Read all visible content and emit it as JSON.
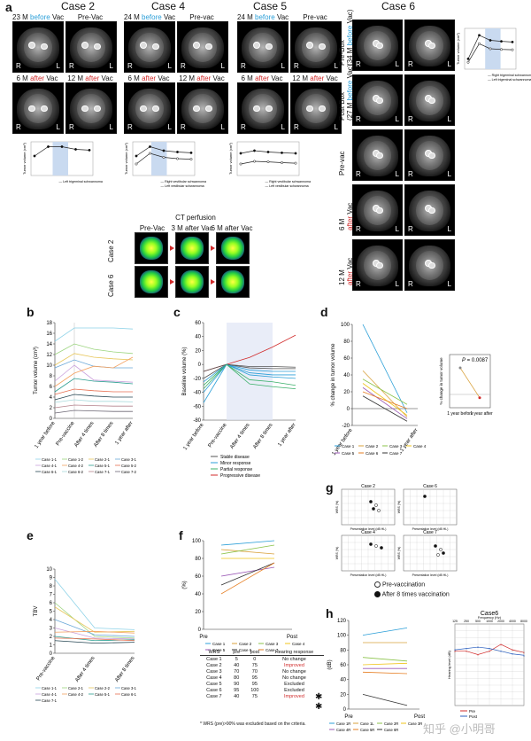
{
  "panel_a": {
    "letter": "a",
    "cases": [
      "Case 2",
      "Case 4",
      "Case 5",
      "Case 6"
    ],
    "case2": {
      "top_left": {
        "pre": "23 M",
        "mid": "before",
        "post": "Vac"
      },
      "top_right": "Pre-Vac",
      "bot_left": {
        "pre": "6 M",
        "mid": "after",
        "post": "Vac"
      },
      "bot_right": {
        "pre": "12 M",
        "mid": "after",
        "post": "Vac"
      }
    },
    "case4": {
      "top_left": {
        "pre": "24 M",
        "mid": "before",
        "post": "Vac"
      },
      "top_right": "Pre-vac",
      "bot_left": {
        "pre": "6 M",
        "mid": "after",
        "post": "Vac"
      },
      "bot_right": {
        "pre": "12 M",
        "mid": "after",
        "post": "Vac"
      }
    },
    "case5": {
      "top_left": {
        "pre": "24 M",
        "mid": "before",
        "post": "Vac"
      },
      "top_right": "Pre-vac",
      "bot_left": {
        "pre": "6 M",
        "mid": "after",
        "post": "Vac"
      },
      "bot_right": {
        "pre": "12 M",
        "mid": "after",
        "post": "Vac"
      }
    },
    "case6_rows": [
      {
        "line1": "Pre-Box",
        "line2a": "(34 M",
        "line2b": "before",
        "line2c": "Vac)"
      },
      {
        "line1": "Post Box",
        "line2a": "(27 M",
        "line2b": "before",
        "line2c": "Vac)"
      },
      {
        "line1": "Pre-vac",
        "line2a": "",
        "line2b": "",
        "line2c": ""
      },
      {
        "line1": "6 M",
        "line2a": "",
        "line2b": "after",
        "line2c": "Vac"
      },
      {
        "line1": "12 M",
        "line2a": "",
        "line2b": "after",
        "line2c": "Vac"
      }
    ],
    "R": "R",
    "L": "L",
    "ct_perfusion": {
      "title": "CT perfusion",
      "cols": [
        "Pre-Vac",
        "3 M after Vac",
        "6 M after Vac"
      ],
      "rows": [
        "Case 2",
        "Case 6"
      ]
    },
    "mini_ylabel": "Tumor volume (cm³)",
    "mini_legends": {
      "case2": [
        "Left trigeminal schwannoma"
      ],
      "case4": [
        "Right vestibular schwannoma",
        "Left vestibular schwannoma"
      ],
      "case5": [
        "Right vestibular schwannoma",
        "Left vestibular schwannoma"
      ],
      "case6": [
        "Right trigeminal schwannoma",
        "Left trigeminal schwannoma"
      ]
    }
  },
  "chart_data": [
    {
      "id": "b",
      "type": "line",
      "title": "",
      "ylabel": "Tumor volume (cm³)",
      "categories": [
        "1 year before",
        "Pre-vaccine",
        "After 4 times",
        "After 8 times",
        "1 year after"
      ],
      "ylim": [
        0,
        18
      ],
      "yticks": [
        0,
        2,
        4,
        6,
        8,
        10,
        12,
        14,
        16,
        18
      ],
      "series": [
        {
          "name": "Case 1-1",
          "values": [
            14.5,
            17,
            17,
            17,
            16.8
          ]
        },
        {
          "name": "Case 1-2",
          "values": [
            12,
            14,
            13,
            12.5,
            12.2
          ]
        },
        {
          "name": "Case 2-1",
          "values": [
            10,
            12.2,
            11.5,
            11.2,
            11
          ]
        },
        {
          "name": "Case 3-1",
          "values": [
            9.5,
            11,
            9.8,
            9.5,
            9.5
          ]
        },
        {
          "name": "Case 4-1",
          "values": [
            7,
            10,
            7.2,
            7,
            6.8
          ]
        },
        {
          "name": "Case 4-2",
          "values": [
            6,
            8.5,
            9.8,
            9.5,
            11.5
          ]
        },
        {
          "name": "Case 5-1",
          "values": [
            5,
            7.5,
            7,
            6.8,
            6.5
          ]
        },
        {
          "name": "Case 5-2",
          "values": [
            4.5,
            5.5,
            5.2,
            5,
            5
          ]
        },
        {
          "name": "Case 6-1",
          "values": [
            3.5,
            4.5,
            4.2,
            4,
            4
          ]
        },
        {
          "name": "Case 6-2",
          "values": [
            3,
            3.5,
            3.2,
            3.2,
            3.1
          ]
        },
        {
          "name": "Case 7-1",
          "values": [
            2,
            2.5,
            2.4,
            2.3,
            2.3
          ]
        },
        {
          "name": "Case 7-2",
          "values": [
            1,
            1.5,
            1.4,
            1.3,
            1.3
          ]
        }
      ]
    },
    {
      "id": "c",
      "type": "line",
      "ylabel": "Baseline volume (%)",
      "categories": [
        "1 year before",
        "Pre-vaccine",
        "After 4 times",
        "After 8 times",
        "1 year after"
      ],
      "ylim": [
        -80,
        60
      ],
      "yticks": [
        -80,
        -60,
        -40,
        -20,
        0,
        20,
        40,
        60
      ],
      "legend": [
        "Stable disease",
        "Minor response",
        "Partial response",
        "Progressive disease"
      ],
      "legend_colors": [
        "#555555",
        "#2b9fd8",
        "#3bb06a",
        "#d12b2b"
      ],
      "series": [
        {
          "name": "s1",
          "color": "#d12b2b",
          "values": [
            -10,
            0,
            10,
            25,
            42
          ]
        },
        {
          "name": "s2",
          "color": "#2b9fd8",
          "values": [
            -55,
            0,
            -12,
            -15,
            -15
          ]
        },
        {
          "name": "s3",
          "color": "#2b9fd8",
          "values": [
            -40,
            0,
            -8,
            -10,
            -10
          ]
        },
        {
          "name": "s4",
          "color": "#3bb06a",
          "values": [
            -30,
            0,
            -22,
            -25,
            -30
          ]
        },
        {
          "name": "s5",
          "color": "#555555",
          "values": [
            -20,
            0,
            -5,
            -6,
            -6
          ]
        },
        {
          "name": "s6",
          "color": "#555555",
          "values": [
            -10,
            0,
            -3,
            -3,
            -4
          ]
        },
        {
          "name": "s7",
          "color": "#2b9fd8",
          "values": [
            -25,
            0,
            -15,
            -18,
            -20
          ]
        },
        {
          "name": "s8",
          "color": "#3bb06a",
          "values": [
            -35,
            0,
            -28,
            -32,
            -35
          ]
        }
      ]
    },
    {
      "id": "d",
      "type": "line",
      "ylabel": "% change in tumor volume",
      "categories": [
        "1 year before",
        "1 year after"
      ],
      "ylim": [
        -20,
        100
      ],
      "yticks": [
        -20,
        0,
        20,
        40,
        60,
        80,
        100
      ],
      "legend": [
        "Case 1",
        "Case 2",
        "Case 3",
        "Case 4",
        "Case 5",
        "Case 6",
        "Case 7"
      ],
      "legend_colors": [
        "#2b9fd8",
        "#d9a13b",
        "#8bc34a",
        "#f0c419",
        "#9b59b6",
        "#e67e22",
        "#333333"
      ],
      "series": [
        {
          "name": "Case 1",
          "values": [
            100,
            -5
          ]
        },
        {
          "name": "Case 2",
          "values": [
            45,
            -10
          ]
        },
        {
          "name": "Case 3",
          "values": [
            35,
            5
          ]
        },
        {
          "name": "Case 4",
          "values": [
            30,
            -8
          ]
        },
        {
          "name": "Case 5",
          "values": [
            25,
            -12
          ]
        },
        {
          "name": "Case 6",
          "values": [
            20,
            0
          ]
        },
        {
          "name": "Case 7",
          "values": [
            15,
            -15
          ]
        }
      ],
      "inset": {
        "ylabel": "% change in tumor volume",
        "categories": [
          "1 year before",
          "1 year after"
        ],
        "p_value_label": "P",
        "p_value": "= 0.0087",
        "mean": [
          40,
          -5
        ],
        "ylim": [
          -20,
          60
        ]
      }
    },
    {
      "id": "e",
      "type": "line",
      "ylabel": "TBV",
      "categories": [
        "Pre-vaccine",
        "After 4 times",
        "After 8 times"
      ],
      "ylim": [
        0,
        10
      ],
      "yticks": [
        0,
        1,
        2,
        3,
        4,
        5,
        6,
        7,
        8,
        9,
        10
      ],
      "series": [
        {
          "name": "Case 1-1",
          "values": [
            8.8,
            3,
            2.8
          ]
        },
        {
          "name": "Case 2-1",
          "values": [
            6,
            2,
            1.8
          ]
        },
        {
          "name": "Case 2-2",
          "values": [
            5.5,
            2.5,
            2.6
          ]
        },
        {
          "name": "Case 3-1",
          "values": [
            4,
            2.2,
            2
          ]
        },
        {
          "name": "Case 4-1",
          "values": [
            3,
            1.8,
            1.7
          ]
        },
        {
          "name": "Case 4-2",
          "values": [
            2.5,
            2.6,
            2.4
          ]
        },
        {
          "name": "Case 5-1",
          "values": [
            2,
            1.5,
            1.6
          ]
        },
        {
          "name": "Case 6-1",
          "values": [
            1.8,
            1.7,
            1.5
          ]
        },
        {
          "name": "Case 7-1",
          "values": [
            1.5,
            1.2,
            1.3
          ]
        }
      ]
    },
    {
      "id": "f",
      "type": "line",
      "ylabel": "(%)",
      "categories": [
        "Pre",
        "Post"
      ],
      "ylim": [
        0,
        100
      ],
      "yticks": [
        0,
        20,
        40,
        60,
        80,
        100
      ],
      "legend": [
        "Case 1",
        "Case 2",
        "Case 3",
        "Case 4",
        "Case 5",
        "Case 6",
        "Case 7"
      ],
      "series": [
        {
          "name": "Case 1",
          "color": "#2b9fd8",
          "values": [
            95,
            100
          ]
        },
        {
          "name": "Case 2",
          "color": "#d9a13b",
          "values": [
            90,
            85
          ]
        },
        {
          "name": "Case 3",
          "color": "#8bc34a",
          "values": [
            85,
            95
          ]
        },
        {
          "name": "Case 4",
          "color": "#f0c419",
          "values": [
            80,
            80
          ]
        },
        {
          "name": "Case 5",
          "color": "#9b59b6",
          "values": [
            60,
            70
          ]
        },
        {
          "name": "Case 6",
          "color": "#333333",
          "values": [
            50,
            75
          ]
        },
        {
          "name": "Case 7",
          "color": "#e67e22",
          "values": [
            40,
            75
          ]
        }
      ]
    },
    {
      "id": "h",
      "type": "line",
      "ylabel": "(dB)",
      "categories": [
        "Pre",
        "Post"
      ],
      "ylim": [
        0,
        120
      ],
      "yticks": [
        0,
        20,
        40,
        60,
        80,
        100,
        120
      ],
      "series": [
        {
          "name": "Case 1R",
          "color": "#2b9fd8",
          "values": [
            100,
            110
          ]
        },
        {
          "name": "Case 1L",
          "color": "#d9a13b",
          "values": [
            90,
            90
          ]
        },
        {
          "name": "Case 2R",
          "color": "#8bc34a",
          "values": [
            70,
            65
          ]
        },
        {
          "name": "Case 3R",
          "color": "#f0c419",
          "values": [
            60,
            62
          ]
        },
        {
          "name": "Case 4R",
          "color": "#9b59b6",
          "values": [
            55,
            55
          ]
        },
        {
          "name": "Case 5R",
          "color": "#e67e22",
          "values": [
            50,
            48
          ]
        },
        {
          "name": "Case 6R",
          "color": "#333333",
          "values": [
            20,
            5
          ]
        }
      ]
    }
  ],
  "panel_b": {
    "letter": "b"
  },
  "panel_c": {
    "letter": "c"
  },
  "panel_d": {
    "letter": "d"
  },
  "panel_e": {
    "letter": "e"
  },
  "panel_f": {
    "letter": "f",
    "table": {
      "headers": [
        "WRS",
        "pre",
        "post",
        "Hearing response"
      ],
      "rows": [
        [
          "Case 1",
          "5",
          "0",
          "No change"
        ],
        [
          "Case 2",
          "40",
          "75",
          "Improved"
        ],
        [
          "Case 3",
          "70",
          "70",
          "No change"
        ],
        [
          "Case 4",
          "80",
          "95",
          "No change"
        ],
        [
          "Case 5",
          "90",
          "95",
          "Excluded"
        ],
        [
          "Case 6",
          "95",
          "100",
          "Excluded"
        ],
        [
          "Case 7",
          "40",
          "75",
          "Improved"
        ]
      ],
      "footnote": "* WRS (pre)>90% was excluded based on the criteria."
    }
  },
  "panel_g": {
    "letter": "g",
    "subpanels": [
      "Case 2",
      "Case 6",
      "Case 4",
      "Case 7"
    ],
    "xlabel": "Presentation level (dB HL)",
    "ylabel": "WRS (%)",
    "legend_pre": "Pre-vaccination",
    "legend_post": "After 8 times vaccination"
  },
  "panel_h": {
    "letter": "h",
    "audiogram_title": "Case6",
    "audiogram_xlabel": "Frequency (Hz)",
    "audiogram_ylabel": "Hearing level (dB)",
    "audiogram_legend": [
      "Pre",
      "Post"
    ],
    "freqs": [
      "125",
      "250",
      "500",
      "1000",
      "2000",
      "4000",
      "8000"
    ],
    "watermark": "知乎 @小明哥"
  }
}
